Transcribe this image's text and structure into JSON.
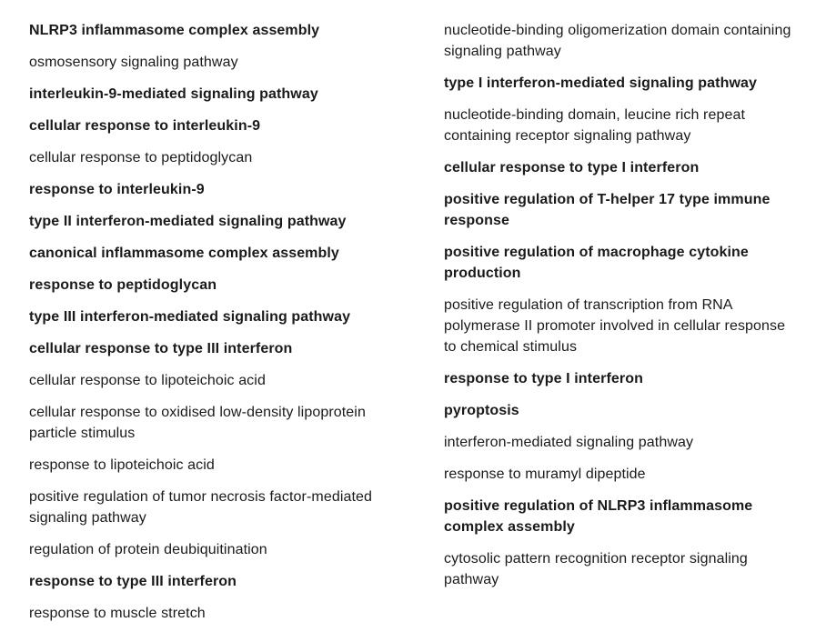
{
  "left_column": [
    {
      "label": "NLRP3 inflammasome complex assembly",
      "bold": true
    },
    {
      "label": "osmosensory signaling pathway",
      "bold": false
    },
    {
      "label": "interleukin-9-mediated signaling pathway",
      "bold": true
    },
    {
      "label": "cellular response to interleukin-9",
      "bold": true
    },
    {
      "label": "cellular response to peptidoglycan",
      "bold": false
    },
    {
      "label": "response to interleukin-9",
      "bold": true
    },
    {
      "label": "type II interferon-mediated signaling pathway",
      "bold": true
    },
    {
      "label": "canonical inflammasome complex assembly",
      "bold": true
    },
    {
      "label": "response to peptidoglycan",
      "bold": true
    },
    {
      "label": "type III interferon-mediated signaling pathway",
      "bold": true
    },
    {
      "label": "cellular response to type III interferon",
      "bold": true
    },
    {
      "label": "cellular response to lipoteichoic acid",
      "bold": false
    },
    {
      "label": "cellular response to oxidised low-density lipoprotein particle stimulus",
      "bold": false
    },
    {
      "label": "response to lipoteichoic acid",
      "bold": false
    },
    {
      "label": "positive regulation of tumor necrosis factor-mediated signaling pathway",
      "bold": false
    },
    {
      "label": "regulation of protein deubiquitination",
      "bold": false
    },
    {
      "label": "response to type III interferon",
      "bold": true
    },
    {
      "label": "response to muscle stretch",
      "bold": false
    }
  ],
  "right_column": [
    {
      "label": "nucleotide-binding oligomerization domain containing signaling pathway",
      "bold": false
    },
    {
      "label": "type I interferon-mediated signaling pathway",
      "bold": true
    },
    {
      "label": "nucleotide-binding domain, leucine rich repeat containing receptor signaling pathway",
      "bold": false
    },
    {
      "label": "cellular response to type I interferon",
      "bold": true
    },
    {
      "label": "positive regulation of T-helper 17 type immune response",
      "bold": true
    },
    {
      "label": "positive regulation of macrophage cytokine production",
      "bold": true
    },
    {
      "label": "positive regulation of transcription from RNA polymerase II promoter involved in cellular response to chemical stimulus",
      "bold": false
    },
    {
      "label": "response to type I interferon",
      "bold": true
    },
    {
      "label": "pyroptosis",
      "bold": true
    },
    {
      "label": "interferon-mediated signaling pathway",
      "bold": false
    },
    {
      "label": "response to muramyl dipeptide",
      "bold": false
    },
    {
      "label": "positive regulation of NLRP3 inflammasome complex assembly",
      "bold": true
    },
    {
      "label": "cytosolic pattern recognition receptor signaling pathway",
      "bold": false
    }
  ]
}
